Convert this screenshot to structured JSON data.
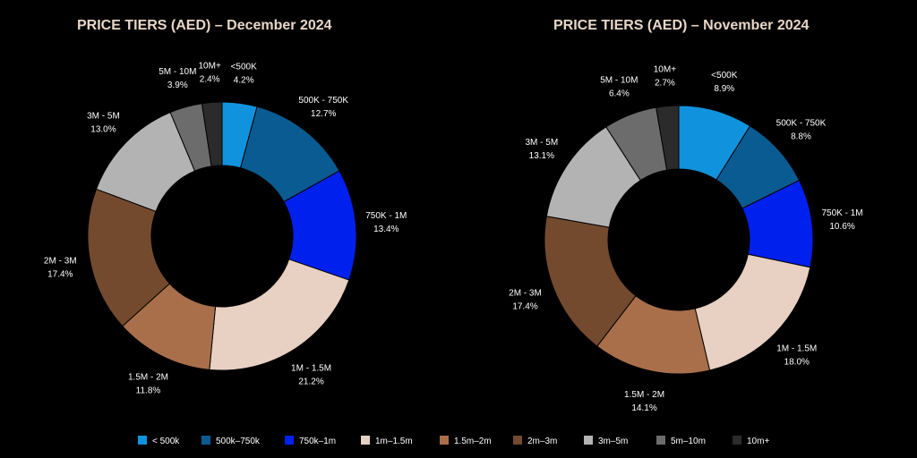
{
  "chart_data": [
    {
      "type": "pie",
      "title": "PRICE TIERS (AED) – December 2024",
      "categories": [
        "<500K",
        "500K - 750K",
        "750K - 1M",
        "1M - 1.5M",
        "1.5M - 2M",
        "2M - 3M",
        "3M - 5M",
        "5M - 10M",
        "10M+"
      ],
      "values": [
        4.2,
        12.7,
        13.4,
        21.2,
        11.8,
        17.4,
        13.0,
        3.9,
        2.4
      ],
      "value_labels": [
        "4.2%",
        "12.7%",
        "13.4%",
        "21.2%",
        "11.8%",
        "17.4%",
        "13.0%",
        "3.9%",
        "2.4%"
      ]
    },
    {
      "type": "pie",
      "title": "PRICE TIERS (AED) – November 2024",
      "categories": [
        "<500K",
        "500K - 750K",
        "750K - 1M",
        "1M - 1.5M",
        "1.5M - 2M",
        "2M - 3M",
        "3M - 5M",
        "5M - 10M",
        "10M+"
      ],
      "values": [
        8.9,
        8.8,
        10.6,
        18.0,
        14.1,
        17.4,
        13.1,
        6.4,
        2.7
      ],
      "value_labels": [
        "8.9%",
        "8.8%",
        "10.6%",
        "18.0%",
        "14.1%",
        "17.4%",
        "13.1%",
        "6.4%",
        "2.7%"
      ]
    }
  ],
  "legend": {
    "placement": "bottom",
    "items": [
      "< 500k",
      "500k–750k",
      "750k–1m",
      "1m–1.5m",
      "1.5m–2m",
      "2m–3m",
      "3m–5m",
      "5m–10m",
      "10m+"
    ]
  },
  "colors": [
    "#1192dc",
    "#0a5b91",
    "#0020ee",
    "#e8d1c2",
    "#a96f4b",
    "#744a2f",
    "#b3b3b3",
    "#6c6c6c",
    "#2b2b2b"
  ]
}
